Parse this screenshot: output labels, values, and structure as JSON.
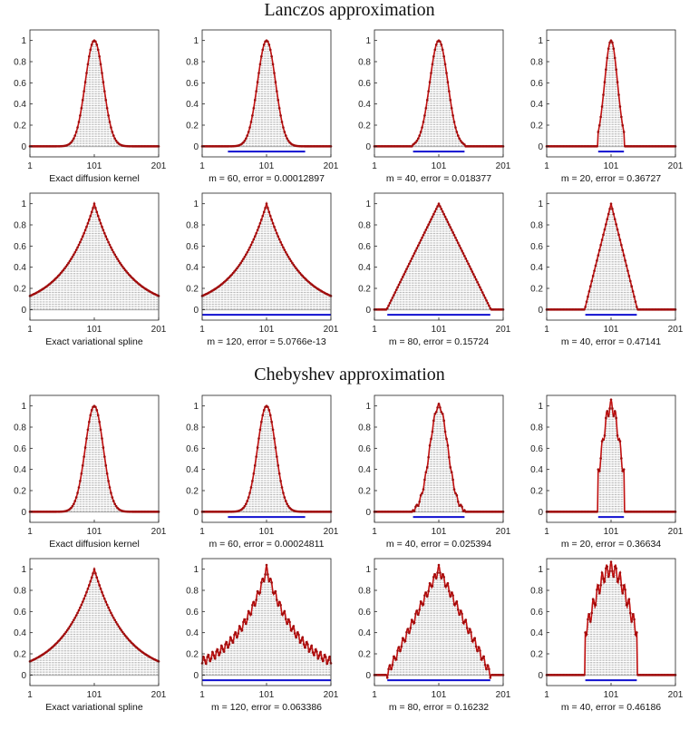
{
  "sections": [
    {
      "title": "Lanczos approximation"
    },
    {
      "title": "Chebyshev approximation"
    }
  ],
  "colors": {
    "points": "#a00c0c",
    "curve": "#c01010",
    "stems": "#8a8a8a",
    "support": "#1010d0",
    "axes": "#222222"
  },
  "chart_data": [
    {
      "type": "scatter",
      "section": "Lanczos approximation",
      "caption": "Exact diffusion kernel",
      "shape": "gauss",
      "sigma": 14,
      "m": null,
      "error": null,
      "support": null,
      "ripple": 0,
      "xlim": [
        1,
        201
      ],
      "ylim": [
        -0.1,
        1.1
      ],
      "xticks": [
        "1",
        "101",
        "201"
      ],
      "yticks": [
        "0",
        "0.2",
        "0.4",
        "0.6",
        "0.8",
        "1"
      ],
      "grid": false
    },
    {
      "type": "scatter",
      "section": "Lanczos approximation",
      "caption": "m = 60, error = 0.00012897",
      "shape": "gauss",
      "sigma": 14,
      "m": 60,
      "error": 0.00012897,
      "support": [
        41,
        161
      ],
      "ripple": 0,
      "xlim": [
        1,
        201
      ],
      "ylim": [
        -0.1,
        1.1
      ],
      "xticks": [
        "1",
        "101",
        "201"
      ],
      "yticks": [
        "0",
        "0.2",
        "0.4",
        "0.6",
        "0.8",
        "1"
      ],
      "grid": false
    },
    {
      "type": "scatter",
      "section": "Lanczos approximation",
      "caption": "m = 40, error = 0.018377",
      "shape": "gauss",
      "sigma": 14,
      "m": 40,
      "error": 0.018377,
      "support": [
        61,
        141
      ],
      "ripple": 0,
      "xlim": [
        1,
        201
      ],
      "ylim": [
        -0.1,
        1.1
      ],
      "xticks": [
        "1",
        "101",
        "201"
      ],
      "yticks": [
        "0",
        "0.2",
        "0.4",
        "0.6",
        "0.8",
        "1"
      ],
      "grid": false
    },
    {
      "type": "scatter",
      "section": "Lanczos approximation",
      "caption": "m = 20, error = 0.36727",
      "shape": "gauss",
      "sigma": 10,
      "m": 20,
      "error": 0.36727,
      "support": [
        81,
        121
      ],
      "ripple": 0,
      "xlim": [
        1,
        201
      ],
      "ylim": [
        -0.1,
        1.1
      ],
      "xticks": [
        "1",
        "101",
        "201"
      ],
      "yticks": [
        "0",
        "0.2",
        "0.4",
        "0.6",
        "0.8",
        "1"
      ],
      "grid": false
    },
    {
      "type": "scatter",
      "section": "Lanczos approximation",
      "caption": "Exact variational spline",
      "shape": "exp",
      "tau": 0.0205,
      "m": null,
      "error": null,
      "support": null,
      "ripple": 0,
      "xlim": [
        1,
        201
      ],
      "ylim": [
        -0.1,
        1.1
      ],
      "xticks": [
        "1",
        "101",
        "201"
      ],
      "yticks": [
        "0",
        "0.2",
        "0.4",
        "0.6",
        "0.8",
        "1"
      ],
      "grid": false
    },
    {
      "type": "scatter",
      "section": "Lanczos approximation",
      "caption": "m = 120, error = 5.0766e-13",
      "shape": "exp",
      "tau": 0.0205,
      "m": 120,
      "error": 5.0766e-13,
      "support": [
        1,
        201
      ],
      "ripple": 0,
      "xlim": [
        1,
        201
      ],
      "ylim": [
        -0.1,
        1.1
      ],
      "xticks": [
        "1",
        "101",
        "201"
      ],
      "yticks": [
        "0",
        "0.2",
        "0.4",
        "0.6",
        "0.8",
        "1"
      ],
      "grid": false
    },
    {
      "type": "scatter",
      "section": "Lanczos approximation",
      "caption": "m = 80, error = 0.15724",
      "shape": "lin",
      "half": 81,
      "m": 80,
      "error": 0.15724,
      "support": [
        21,
        181
      ],
      "ripple": 0,
      "xlim": [
        1,
        201
      ],
      "ylim": [
        -0.1,
        1.1
      ],
      "xticks": [
        "1",
        "101",
        "201"
      ],
      "yticks": [
        "0",
        "0.2",
        "0.4",
        "0.6",
        "0.8",
        "1"
      ],
      "grid": false
    },
    {
      "type": "scatter",
      "section": "Lanczos approximation",
      "caption": "m = 40, error = 0.47141",
      "shape": "lin",
      "half": 41,
      "m": 40,
      "error": 0.47141,
      "support": [
        61,
        141
      ],
      "ripple": 0,
      "xlim": [
        1,
        201
      ],
      "ylim": [
        -0.1,
        1.1
      ],
      "xticks": [
        "1",
        "101",
        "201"
      ],
      "yticks": [
        "0",
        "0.2",
        "0.4",
        "0.6",
        "0.8",
        "1"
      ],
      "grid": false
    },
    {
      "type": "scatter",
      "section": "Chebyshev approximation",
      "caption": "Exact diffusion kernel",
      "shape": "gauss",
      "sigma": 14,
      "m": null,
      "error": null,
      "support": null,
      "ripple": 0,
      "xlim": [
        1,
        201
      ],
      "ylim": [
        -0.1,
        1.1
      ],
      "xticks": [
        "1",
        "101",
        "201"
      ],
      "yticks": [
        "0",
        "0.2",
        "0.4",
        "0.6",
        "0.8",
        "1"
      ],
      "grid": false
    },
    {
      "type": "scatter",
      "section": "Chebyshev approximation",
      "caption": "m = 60, error = 0.00024811",
      "shape": "gauss",
      "sigma": 14,
      "m": 60,
      "error": 0.00024811,
      "support": [
        41,
        161
      ],
      "ripple": 0,
      "xlim": [
        1,
        201
      ],
      "ylim": [
        -0.1,
        1.1
      ],
      "xticks": [
        "1",
        "101",
        "201"
      ],
      "yticks": [
        "0",
        "0.2",
        "0.4",
        "0.6",
        "0.8",
        "1"
      ],
      "grid": false
    },
    {
      "type": "scatter",
      "section": "Chebyshev approximation",
      "caption": "m = 40, error = 0.025394",
      "shape": "gauss",
      "sigma": 14,
      "m": 40,
      "error": 0.025394,
      "support": [
        61,
        141
      ],
      "ripple": 0.02,
      "xlim": [
        1,
        201
      ],
      "ylim": [
        -0.1,
        1.1
      ],
      "xticks": [
        "1",
        "101",
        "201"
      ],
      "yticks": [
        "0",
        "0.2",
        "0.4",
        "0.6",
        "0.8",
        "1"
      ],
      "grid": false
    },
    {
      "type": "scatter",
      "section": "Chebyshev approximation",
      "caption": "m = 20, error = 0.36634",
      "shape": "gauss",
      "sigma": 14,
      "m": 20,
      "error": 0.36634,
      "support": [
        81,
        121
      ],
      "ripple": 0.06,
      "xlim": [
        1,
        201
      ],
      "ylim": [
        -0.1,
        1.1
      ],
      "xticks": [
        "1",
        "101",
        "201"
      ],
      "yticks": [
        "0",
        "0.2",
        "0.4",
        "0.6",
        "0.8",
        "1"
      ],
      "grid": false
    },
    {
      "type": "scatter",
      "section": "Chebyshev approximation",
      "caption": "Exact variational spline",
      "shape": "exp",
      "tau": 0.0205,
      "m": null,
      "error": null,
      "support": null,
      "ripple": 0,
      "xlim": [
        1,
        201
      ],
      "ylim": [
        -0.1,
        1.1
      ],
      "xticks": [
        "1",
        "101",
        "201"
      ],
      "yticks": [
        "0",
        "0.2",
        "0.4",
        "0.6",
        "0.8",
        "1"
      ],
      "grid": false
    },
    {
      "type": "scatter",
      "section": "Chebyshev approximation",
      "caption": "m = 120, error = 0.063386",
      "shape": "exp",
      "tau": 0.0205,
      "m": 120,
      "error": 0.063386,
      "support": [
        1,
        201
      ],
      "ripple": 0.04,
      "xlim": [
        1,
        201
      ],
      "ylim": [
        -0.1,
        1.1
      ],
      "xticks": [
        "1",
        "101",
        "201"
      ],
      "yticks": [
        "0",
        "0.2",
        "0.4",
        "0.6",
        "0.8",
        "1"
      ],
      "grid": false
    },
    {
      "type": "scatter",
      "section": "Chebyshev approximation",
      "caption": "m = 80, error = 0.16232",
      "shape": "lin",
      "half": 81,
      "m": 80,
      "error": 0.16232,
      "support": [
        21,
        181
      ],
      "ripple": 0.04,
      "xlim": [
        1,
        201
      ],
      "ylim": [
        -0.1,
        1.1
      ],
      "xticks": [
        "1",
        "101",
        "201"
      ],
      "yticks": [
        "0",
        "0.2",
        "0.4",
        "0.6",
        "0.8",
        "1"
      ],
      "grid": false
    },
    {
      "type": "scatter",
      "section": "Chebyshev approximation",
      "caption": "m = 40, error = 0.46186",
      "shape": "gauss",
      "sigma": 30,
      "m": 40,
      "error": 0.46186,
      "support": [
        61,
        141
      ],
      "ripple": 0.07,
      "xlim": [
        1,
        201
      ],
      "ylim": [
        -0.1,
        1.1
      ],
      "xticks": [
        "1",
        "101",
        "201"
      ],
      "yticks": [
        "0",
        "0.2",
        "0.4",
        "0.6",
        "0.8",
        "1"
      ],
      "grid": false
    }
  ]
}
